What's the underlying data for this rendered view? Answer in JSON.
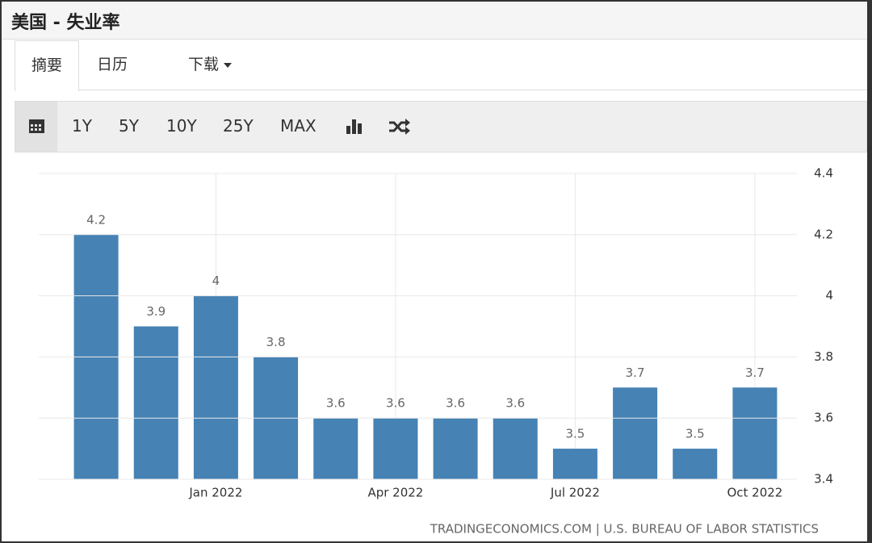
{
  "header": {
    "title": "美国 - 失业率"
  },
  "tabs": [
    "摘要",
    "日历",
    "下载"
  ],
  "toolbar": [
    "1Y",
    "5Y",
    "10Y",
    "25Y",
    "MAX"
  ],
  "chart_data": {
    "type": "bar",
    "categories": [
      null,
      null,
      "Jan 2022",
      null,
      null,
      "Apr 2022",
      null,
      null,
      "Jul 2022",
      null,
      null,
      "Oct 2022"
    ],
    "values": [
      4.2,
      3.9,
      4,
      3.8,
      3.6,
      3.6,
      3.6,
      3.6,
      3.5,
      3.7,
      3.5,
      3.7
    ],
    "color": "#4682b4",
    "ylim": [
      3.4,
      4.4
    ],
    "yticks": [
      3.4,
      3.6,
      3.8,
      4,
      4.2,
      4.4
    ],
    "grid": true
  },
  "source": "TRADINGECONOMICS.COM | U.S. BUREAU OF LABOR STATISTICS"
}
